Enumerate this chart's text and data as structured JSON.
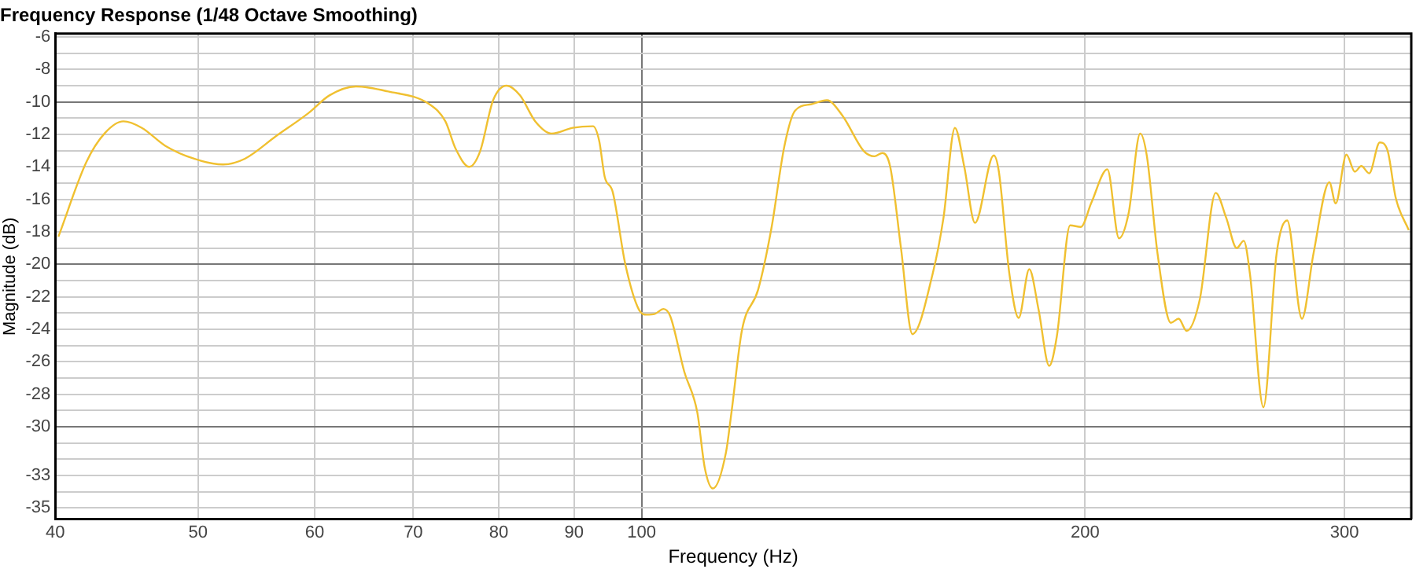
{
  "chart_data": {
    "type": "line",
    "title": "Frequency Response (1/48 Octave Smoothing)",
    "xlabel": "Frequency (Hz)",
    "ylabel": "Magnitude (dB)",
    "log": "x",
    "grid": true,
    "legend": false,
    "marker": "none",
    "line_style": "solid",
    "xlim": [
      40,
      333
    ],
    "ylim": [
      -35.7,
      -5.8
    ],
    "xticks": [
      40,
      50,
      60,
      70,
      80,
      90,
      100,
      200,
      300
    ],
    "yticks": [
      -6,
      {
        "value": -7,
        "label": null
      },
      -8,
      {
        "value": -9,
        "label": null
      },
      -10,
      {
        "value": -11,
        "label": null
      },
      -12,
      {
        "value": -13,
        "label": null
      },
      -14,
      {
        "value": -15,
        "label": null
      },
      -16,
      {
        "value": -17,
        "label": null
      },
      -18,
      {
        "value": -19,
        "label": null
      },
      -20,
      {
        "value": -21,
        "label": null
      },
      -22,
      {
        "value": -23,
        "label": null
      },
      -24,
      {
        "value": -25,
        "label": null
      },
      -26,
      {
        "value": -27,
        "label": null
      },
      -28,
      {
        "value": -29,
        "label": null
      },
      -30,
      {
        "value": -31,
        "label": null
      },
      {
        "value": -32,
        "label": null
      },
      -33,
      {
        "value": -34,
        "label": null
      },
      -35
    ],
    "series": [
      {
        "color": "#f0c030",
        "x": [
          40.2,
          42.0,
          43.2,
          44.5,
          45.8,
          47.5,
          49.7,
          52.0,
          53.8,
          56.5,
          59.4,
          61.4,
          64.0,
          67.2,
          71.8,
          73.6,
          74.8,
          76.4,
          77.7,
          79.3,
          81.0,
          82.7,
          84.7,
          86.9,
          89.8,
          92.7,
          93.6,
          94.4,
          95.6,
          97.5,
          99.6,
          100.8,
          102.1,
          103.5,
          104.6,
          106.9,
          109.1,
          110.4,
          111.8,
          114.1,
          115.1,
          117.0,
          120.0,
          122.5,
          125.0,
          127.1,
          130.3,
          133.6,
          136.9,
          141.6,
          143.9,
          145.7,
          147.5,
          150.0,
          152.7,
          157.6,
          160.3,
          163.2,
          165.6,
          168.4,
          173.4,
          174.8,
          177.7,
          180.3,
          183.3,
          186.0,
          189.1,
          191.4,
          195.4,
          198.7,
          202.0,
          207.1,
          210.9,
          214.1,
          218.0,
          220.3,
          224.0,
          228.7,
          231.5,
          234.4,
          239.3,
          245.3,
          249.4,
          253.5,
          256.3,
          258.8,
          264.3,
          269.8,
          274.3,
          280.7,
          285.8,
          293.0,
          295.9,
          300.9,
          304.9,
          308.0,
          311.8,
          317.0,
          321.0,
          325.0,
          331.7
        ],
        "values": [
          -18.3,
          -13.7,
          -11.95,
          -11.2,
          -11.6,
          -12.7,
          -13.5,
          -13.85,
          -13.5,
          -12.1,
          -10.7,
          -9.6,
          -9.05,
          -9.35,
          -10.15,
          -11.2,
          -12.9,
          -14.0,
          -13.05,
          -9.9,
          -9.0,
          -9.6,
          -11.2,
          -11.95,
          -11.6,
          -11.5,
          -12.4,
          -14.6,
          -15.55,
          -20.0,
          -22.8,
          -23.1,
          -23.05,
          -22.75,
          -23.2,
          -26.6,
          -29.1,
          -32.55,
          -33.8,
          -31.6,
          -29.1,
          -24.05,
          -21.55,
          -17.8,
          -12.75,
          -10.55,
          -10.15,
          -9.9,
          -10.85,
          -13.05,
          -13.35,
          -13.15,
          -14.0,
          -19.0,
          -24.3,
          -20.6,
          -17.15,
          -11.6,
          -14.0,
          -17.45,
          -13.3,
          -14.3,
          -20.6,
          -23.3,
          -20.3,
          -22.8,
          -26.25,
          -24.4,
          -17.6,
          -17.7,
          -16.2,
          -14.15,
          -18.4,
          -16.85,
          -11.95,
          -13.35,
          -19.35,
          -23.6,
          -23.35,
          -24.1,
          -22.15,
          -15.6,
          -17.15,
          -19.0,
          -18.55,
          -20.6,
          -28.8,
          -19.35,
          -17.3,
          -23.35,
          -19.35,
          -14.95,
          -16.25,
          -13.25,
          -14.3,
          -13.95,
          -14.4,
          -12.5,
          -13.05,
          -15.9,
          -17.9
        ]
      }
    ]
  }
}
